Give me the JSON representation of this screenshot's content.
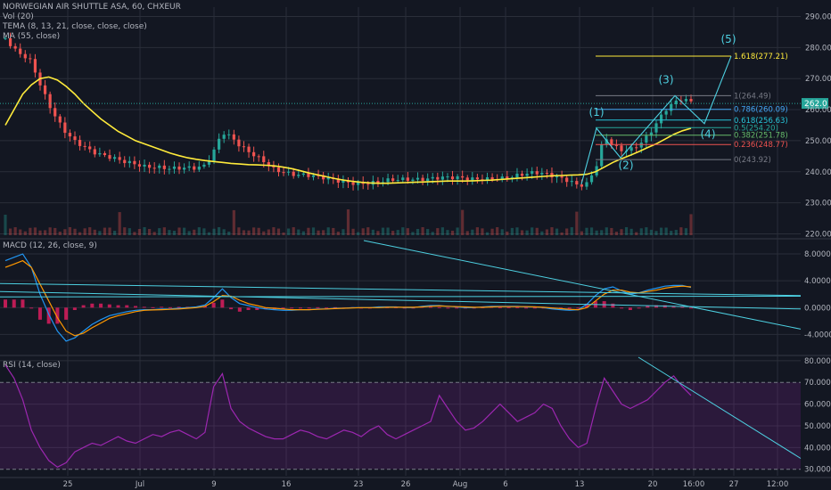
{
  "header": {
    "title_line": "NORWEGIAN AIR SHUTTLE ASA, 60, CHXEUR",
    "indicators": [
      "Vol (20)",
      "TEMA (8, 13, 21, close, close, close)",
      "MA (55, close)"
    ]
  },
  "macd_label": "MACD (12, 26, close, 9)",
  "rsi_label": "RSI (14, close)",
  "colors": {
    "background": "#131722",
    "up": "#26a69a",
    "down": "#ef5350",
    "ma": "#ffeb3b",
    "fib_1618": "#ffeb3b",
    "cyan": "#4dd0e1",
    "rsi": "#9c27b0",
    "grid": "#2a2e39",
    "axis_text": "#b2b5be"
  },
  "chart_data": [
    {
      "type": "candlestick",
      "y_ticks": [
        290,
        280,
        270,
        260,
        250,
        240,
        230,
        220
      ],
      "ylim": [
        219,
        293
      ],
      "x_ticks": [
        "25",
        "Jul",
        "9",
        "16",
        "23",
        "26",
        "Aug",
        "6",
        "13",
        "20",
        "16:00",
        "27",
        "12:00"
      ],
      "last_price_label": "262.0",
      "fib_levels": [
        {
          "label": "1.618(277.21)",
          "value": 277.21,
          "color": "#ffeb3b"
        },
        {
          "label": "1(264.49)",
          "value": 264.49,
          "color": "#787b86"
        },
        {
          "label": "0.786(260.09)",
          "value": 260.09,
          "color": "#42a5f5"
        },
        {
          "label": "0.618(256.63)",
          "value": 256.63,
          "color": "#26c6da"
        },
        {
          "label": "0.5(254.20)",
          "value": 254.2,
          "color": "#26a69a"
        },
        {
          "label": "0.382(251.78)",
          "value": 251.78,
          "color": "#66bb6a"
        },
        {
          "label": "0.236(248.77)",
          "value": 248.77,
          "color": "#ef5350"
        },
        {
          "label": "0(243.92)",
          "value": 243.92,
          "color": "#787b86"
        }
      ],
      "wave_labels": [
        "(1)",
        "(2)",
        "(3)",
        "(4)",
        "(5)"
      ],
      "price_path": [
        283,
        279,
        277,
        275,
        268,
        262,
        257,
        253,
        250,
        248,
        246,
        245,
        244.5,
        244,
        243.5,
        243,
        242,
        241.5,
        241,
        240.5,
        240.8,
        241.2,
        241.5,
        242.5,
        247,
        253,
        251,
        248,
        246,
        244.5,
        243,
        241,
        240.5,
        239.5,
        239,
        238.5,
        238,
        237.5,
        237.2,
        237,
        236.8,
        236.6,
        236.5,
        236.5,
        236.8,
        237,
        237.3,
        237.6,
        238,
        238.3,
        238.5,
        238.2,
        237.8,
        237.4,
        237.2,
        237.5,
        238,
        238.3,
        238.6,
        239,
        239.2,
        239.3,
        239,
        238.5,
        238,
        237.5,
        236,
        236.5,
        241,
        251,
        248,
        246.5,
        247,
        249,
        252,
        256,
        260,
        262,
        263,
        262
      ],
      "ma_path": [
        255,
        260,
        265,
        268,
        270,
        270.5,
        269.5,
        267.5,
        265,
        262,
        259.5,
        257,
        255,
        253,
        251.5,
        250,
        249,
        248,
        247,
        246,
        245.2,
        244.5,
        244,
        243.6,
        243.3,
        243,
        242.7,
        242.5,
        242.3,
        242.2,
        242.1,
        241.9,
        241.5,
        241,
        240.3,
        239.6,
        239,
        238.4,
        237.8,
        237.3,
        236.9,
        236.6,
        236.4,
        236.3,
        236.3,
        236.4,
        236.5,
        236.6,
        236.7,
        236.8,
        236.9,
        237,
        237,
        237,
        237.1,
        237.2,
        237.3,
        237.5,
        237.7,
        237.9,
        238.1,
        238.3,
        238.5,
        238.7,
        238.8,
        238.9,
        239,
        239.2,
        240,
        241.5,
        243,
        244.2,
        245.3,
        246.5,
        247.8,
        249,
        250.5,
        252,
        253.2,
        254
      ]
    },
    {
      "type": "line",
      "name_label": "MACD (12, 26, close, 9)",
      "y_ticks": [
        "8.0000",
        "4.0000",
        "0.0000",
        "-4.0000"
      ],
      "ylim": [
        -7,
        10
      ],
      "macd_path": [
        7,
        7.5,
        8,
        6,
        2,
        -1,
        -3.5,
        -5,
        -4.5,
        -3.5,
        -2.5,
        -1.8,
        -1.2,
        -0.9,
        -0.6,
        -0.4,
        -0.3,
        -0.3,
        -0.2,
        -0.2,
        -0.1,
        0,
        0.1,
        0.4,
        1.5,
        2.8,
        1.5,
        0.6,
        0.3,
        0,
        -0.2,
        -0.3,
        -0.4,
        -0.4,
        -0.3,
        -0.3,
        -0.2,
        -0.2,
        -0.1,
        -0.1,
        0,
        0,
        0,
        0.1,
        0.1,
        0.1,
        0,
        0,
        0.2,
        0.3,
        0.3,
        0.2,
        0.1,
        0,
        0,
        0.1,
        0.2,
        0.2,
        0.2,
        0.2,
        0.1,
        0.1,
        0,
        -0.2,
        -0.3,
        -0.4,
        -0.3,
        0.5,
        1.8,
        2.8,
        3.1,
        2.5,
        2,
        2.2,
        2.6,
        2.9,
        3.2,
        3.3,
        3.3,
        3
      ],
      "signal_path": [
        6,
        6.5,
        7,
        6,
        3.5,
        1,
        -1.5,
        -3.5,
        -4.2,
        -3.8,
        -3,
        -2.3,
        -1.6,
        -1.2,
        -0.9,
        -0.6,
        -0.4,
        -0.35,
        -0.3,
        -0.25,
        -0.2,
        -0.1,
        0,
        0.2,
        0.9,
        1.8,
        1.7,
        1.1,
        0.6,
        0.3,
        0,
        -0.1,
        -0.2,
        -0.3,
        -0.3,
        -0.3,
        -0.25,
        -0.2,
        -0.15,
        -0.1,
        -0.05,
        0,
        0,
        0,
        0.05,
        0.05,
        0.05,
        0.05,
        0.1,
        0.2,
        0.25,
        0.2,
        0.15,
        0.1,
        0.05,
        0.05,
        0.1,
        0.15,
        0.15,
        0.15,
        0.15,
        0.1,
        0.05,
        -0.05,
        -0.15,
        -0.25,
        -0.3,
        0,
        1,
        2,
        2.6,
        2.6,
        2.3,
        2.2,
        2.4,
        2.6,
        2.9,
        3.1,
        3.2,
        3.1
      ]
    },
    {
      "type": "line",
      "name_label": "RSI (14, close)",
      "y_ticks": [
        "80.0000",
        "70.0000",
        "60.0000",
        "50.0000",
        "40.0000",
        "30.0000"
      ],
      "ylim": [
        27,
        82
      ],
      "band": [
        30,
        70
      ],
      "rsi_path": [
        78,
        72,
        62,
        48,
        40,
        34,
        31,
        33,
        38,
        40,
        42,
        41,
        43,
        45,
        43,
        42,
        44,
        46,
        45,
        47,
        48,
        46,
        44,
        47,
        68,
        74,
        58,
        52,
        49,
        47,
        45,
        44,
        44,
        46,
        48,
        47,
        45,
        44,
        46,
        48,
        47,
        45,
        48,
        50,
        46,
        44,
        46,
        48,
        50,
        52,
        64,
        58,
        52,
        48,
        49,
        52,
        56,
        60,
        56,
        52,
        54,
        56,
        60,
        58,
        50,
        44,
        40,
        42,
        58,
        72,
        66,
        60,
        58,
        60,
        62,
        66,
        70,
        73,
        68,
        64
      ]
    }
  ]
}
